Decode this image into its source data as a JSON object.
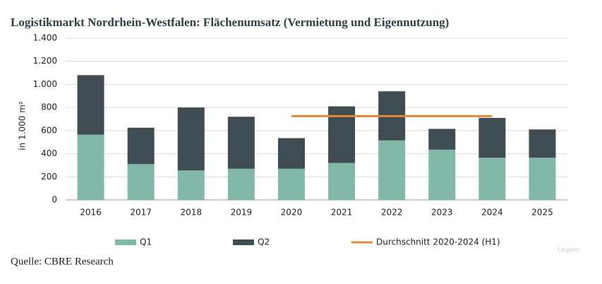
{
  "chart_data": {
    "type": "bar",
    "stacked": true,
    "title": "Logistikmarkt Nordrhein-Westfalen: Flächenumsatz (Vermietung und Eigennutzung)",
    "y_label": "in 1.000 m²",
    "source": "Quelle: CBRE Research",
    "legend_watermark": "Legenc",
    "categories": [
      "2016",
      "2017",
      "2018",
      "2019",
      "2020",
      "2021",
      "2022",
      "2023",
      "2024",
      "2025"
    ],
    "series": [
      {
        "name": "Q1",
        "color": "#82b8a8",
        "values": [
          565,
          310,
          255,
          270,
          270,
          320,
          515,
          435,
          365,
          365
        ]
      },
      {
        "name": "Q2",
        "color": "#3f4d52",
        "values": [
          515,
          315,
          545,
          450,
          265,
          490,
          425,
          180,
          345,
          245
        ]
      },
      {
        "name": "Durchschnitt 2020-2024 (H1)",
        "color": "#e08a3c",
        "type": "line",
        "values": [
          null,
          null,
          null,
          null,
          725,
          725,
          725,
          725,
          725,
          null
        ]
      }
    ],
    "ylim": [
      0,
      1400
    ],
    "yticks": [
      0,
      200,
      400,
      600,
      800,
      {
        "value": 1000,
        "label": "1.000"
      },
      {
        "value": 1200,
        "label": "1.200"
      },
      {
        "value": 1400,
        "label": "1.400"
      }
    ],
    "grid": true,
    "legend": "bottom"
  }
}
